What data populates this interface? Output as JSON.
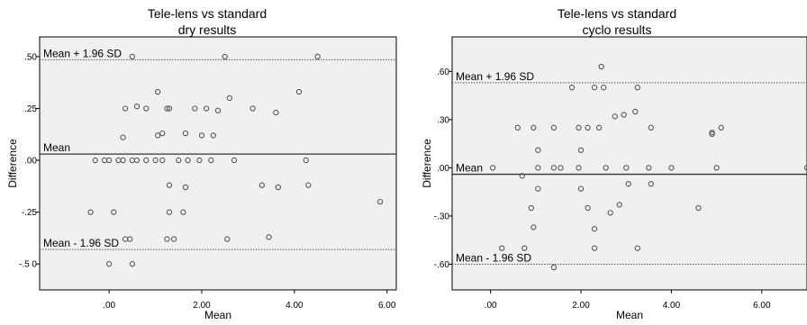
{
  "chart_data": [
    {
      "type": "scatter",
      "title": "Tele-lens vs standard",
      "subtitle": "dry results",
      "xlabel": "Mean",
      "ylabel": "Difference",
      "xlim": [
        -1.5,
        6.2
      ],
      "ylim": [
        -0.625,
        0.595
      ],
      "xticks": [
        0,
        2,
        4,
        6
      ],
      "xtick_labels": [
        ".00",
        "2.00",
        "4.00",
        "6.00"
      ],
      "yticks": [
        0.5,
        0.25,
        0,
        -0.25,
        -0.5
      ],
      "ytick_labels": [
        ".50",
        ".25",
        ".00",
        "-.25",
        "-.5 0"
      ],
      "grid": false,
      "reference_lines": [
        {
          "label": "Mean + 1.96 SD",
          "y": 0.485,
          "style": "dotted"
        },
        {
          "label": "Mean",
          "y": 0.03,
          "style": "solid"
        },
        {
          "label": "Mean - 1.96 SD",
          "y": -0.43,
          "style": "dotted"
        }
      ],
      "points": [
        [
          0.5,
          0.5
        ],
        [
          2.5,
          0.5
        ],
        [
          4.5,
          0.5
        ],
        [
          1.05,
          0.33
        ],
        [
          4.1,
          0.33
        ],
        [
          1.25,
          0.25
        ],
        [
          2.6,
          0.3
        ],
        [
          3.1,
          0.25
        ],
        [
          3.6,
          0.23
        ],
        [
          0.35,
          0.25
        ],
        [
          0.6,
          0.26
        ],
        [
          0.8,
          0.25
        ],
        [
          1.3,
          0.25
        ],
        [
          1.85,
          0.25
        ],
        [
          2.1,
          0.25
        ],
        [
          2.35,
          0.24
        ],
        [
          0.3,
          0.11
        ],
        [
          1.05,
          0.12
        ],
        [
          1.15,
          0.13
        ],
        [
          1.65,
          0.13
        ],
        [
          2.0,
          0.12
        ],
        [
          2.25,
          0.12
        ],
        [
          -0.3,
          0.0
        ],
        [
          -0.1,
          0.0
        ],
        [
          0.0,
          0.0
        ],
        [
          0.2,
          0.0
        ],
        [
          0.3,
          0.0
        ],
        [
          0.5,
          0.0
        ],
        [
          0.6,
          0.0
        ],
        [
          0.8,
          0.0
        ],
        [
          1.0,
          0.0
        ],
        [
          1.15,
          0.0
        ],
        [
          1.5,
          0.0
        ],
        [
          1.7,
          0.0
        ],
        [
          1.95,
          0.0
        ],
        [
          2.2,
          0.0
        ],
        [
          2.7,
          0.0
        ],
        [
          4.25,
          0.0
        ],
        [
          1.3,
          -0.12
        ],
        [
          1.65,
          -0.13
        ],
        [
          3.3,
          -0.12
        ],
        [
          3.65,
          -0.13
        ],
        [
          4.3,
          -0.12
        ],
        [
          1.3,
          -0.25
        ],
        [
          1.6,
          -0.25
        ],
        [
          5.85,
          -0.2
        ],
        [
          -0.4,
          -0.25
        ],
        [
          0.1,
          -0.25
        ],
        [
          1.25,
          -0.38
        ],
        [
          1.4,
          -0.38
        ],
        [
          2.55,
          -0.38
        ],
        [
          3.45,
          -0.37
        ],
        [
          0.35,
          -0.38
        ],
        [
          0.45,
          -0.38
        ],
        [
          0.0,
          -0.5
        ],
        [
          0.5,
          -0.5
        ]
      ]
    },
    {
      "type": "scatter",
      "title": "Tele-lens vs standard",
      "subtitle": "cyclo results",
      "xlabel": "Mean",
      "ylabel": "Difference",
      "xlim": [
        -0.85,
        7.0
      ],
      "ylim": [
        -0.76,
        0.815
      ],
      "xticks": [
        0,
        2,
        4,
        6
      ],
      "xtick_labels": [
        ".00",
        "2.00",
        "4.00",
        "6.00"
      ],
      "yticks": [
        0.6,
        0.3,
        0,
        -0.3,
        -0.6
      ],
      "ytick_labels": [
        ".60",
        ".30",
        ".00",
        "-.30",
        "-.60"
      ],
      "grid": false,
      "reference_lines": [
        {
          "label": "Mean + 1.96 SD",
          "y": 0.53,
          "style": "dotted"
        },
        {
          "label": "Mean",
          "y": -0.04,
          "style": "solid"
        },
        {
          "label": "Mean - 1.96 SD",
          "y": -0.6,
          "style": "dotted"
        }
      ],
      "points": [
        [
          2.45,
          0.63
        ],
        [
          1.8,
          0.5
        ],
        [
          2.5,
          0.5
        ],
        [
          3.25,
          0.5
        ],
        [
          2.3,
          0.5
        ],
        [
          2.95,
          0.33
        ],
        [
          3.2,
          0.35
        ],
        [
          2.75,
          0.32
        ],
        [
          0.6,
          0.25
        ],
        [
          0.95,
          0.25
        ],
        [
          1.4,
          0.25
        ],
        [
          1.95,
          0.25
        ],
        [
          2.15,
          0.25
        ],
        [
          2.4,
          0.25
        ],
        [
          3.55,
          0.25
        ],
        [
          5.1,
          0.25
        ],
        [
          4.9,
          0.22
        ],
        [
          4.9,
          0.21
        ],
        [
          1.05,
          0.11
        ],
        [
          2.0,
          0.11
        ],
        [
          0.05,
          0.0
        ],
        [
          1.05,
          0.0
        ],
        [
          1.4,
          0.0
        ],
        [
          1.55,
          0.0
        ],
        [
          1.95,
          0.0
        ],
        [
          2.55,
          0.0
        ],
        [
          3.0,
          0.0
        ],
        [
          3.5,
          0.0
        ],
        [
          4.0,
          0.0
        ],
        [
          5.0,
          0.0
        ],
        [
          7.0,
          0.0
        ],
        [
          0.7,
          -0.05
        ],
        [
          3.05,
          -0.1
        ],
        [
          3.55,
          -0.1
        ],
        [
          1.05,
          -0.13
        ],
        [
          2.0,
          -0.13
        ],
        [
          0.9,
          -0.25
        ],
        [
          2.15,
          -0.25
        ],
        [
          2.85,
          -0.23
        ],
        [
          4.6,
          -0.25
        ],
        [
          2.65,
          -0.28
        ],
        [
          0.95,
          -0.37
        ],
        [
          2.3,
          -0.38
        ],
        [
          0.25,
          -0.5
        ],
        [
          0.75,
          -0.5
        ],
        [
          2.3,
          -0.5
        ],
        [
          3.25,
          -0.5
        ],
        [
          1.4,
          -0.62
        ]
      ]
    }
  ]
}
